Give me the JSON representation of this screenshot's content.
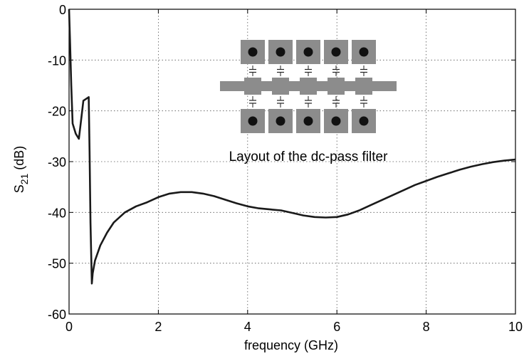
{
  "chart_data": {
    "type": "line",
    "title": "",
    "xlabel": "frequency (GHz)",
    "ylabel_main": "S",
    "ylabel_sub": "21",
    "ylabel_unit": " (dB)",
    "xlim": [
      0,
      10
    ],
    "ylim": [
      -60,
      0
    ],
    "x_ticks": [
      0,
      2,
      4,
      6,
      8,
      10
    ],
    "y_ticks": [
      0,
      -10,
      -20,
      -30,
      -40,
      -50,
      -60
    ],
    "grid": true,
    "annotation": "Layout of the dc-pass filter",
    "series": [
      {
        "color": "#1a1a1a",
        "points": [
          [
            0.0,
            0.0
          ],
          [
            0.02,
            -6.0
          ],
          [
            0.05,
            -15.0
          ],
          [
            0.08,
            -22.5
          ],
          [
            0.15,
            -24.5
          ],
          [
            0.22,
            -25.5
          ],
          [
            0.28,
            -21.0
          ],
          [
            0.32,
            -18.0
          ],
          [
            0.44,
            -17.3
          ],
          [
            0.46,
            -28.0
          ],
          [
            0.48,
            -42.0
          ],
          [
            0.51,
            -54.0
          ],
          [
            0.53,
            -52.0
          ],
          [
            0.58,
            -49.5
          ],
          [
            0.7,
            -46.5
          ],
          [
            0.85,
            -44.0
          ],
          [
            1.0,
            -42.0
          ],
          [
            1.25,
            -40.0
          ],
          [
            1.5,
            -38.8
          ],
          [
            1.75,
            -38.0
          ],
          [
            2.0,
            -37.0
          ],
          [
            2.25,
            -36.3
          ],
          [
            2.5,
            -36.0
          ],
          [
            2.75,
            -36.0
          ],
          [
            3.0,
            -36.3
          ],
          [
            3.25,
            -36.8
          ],
          [
            3.5,
            -37.5
          ],
          [
            3.75,
            -38.2
          ],
          [
            4.0,
            -38.8
          ],
          [
            4.25,
            -39.2
          ],
          [
            4.5,
            -39.4
          ],
          [
            4.75,
            -39.6
          ],
          [
            5.0,
            -40.1
          ],
          [
            5.25,
            -40.6
          ],
          [
            5.5,
            -40.9
          ],
          [
            5.75,
            -41.0
          ],
          [
            6.0,
            -40.9
          ],
          [
            6.25,
            -40.4
          ],
          [
            6.5,
            -39.6
          ],
          [
            6.75,
            -38.6
          ],
          [
            7.0,
            -37.6
          ],
          [
            7.25,
            -36.6
          ],
          [
            7.5,
            -35.6
          ],
          [
            7.75,
            -34.6
          ],
          [
            8.0,
            -33.8
          ],
          [
            8.25,
            -33.0
          ],
          [
            8.5,
            -32.3
          ],
          [
            8.75,
            -31.6
          ],
          [
            9.0,
            -31.0
          ],
          [
            9.25,
            -30.5
          ],
          [
            9.5,
            -30.1
          ],
          [
            9.75,
            -29.8
          ],
          [
            10.0,
            -29.6
          ]
        ]
      }
    ]
  },
  "inset": {
    "description_icon": "dc-pass-filter-layout-diagram",
    "pad_color": "#8c8c8c",
    "via_color": "#111111",
    "column_count": 5
  }
}
